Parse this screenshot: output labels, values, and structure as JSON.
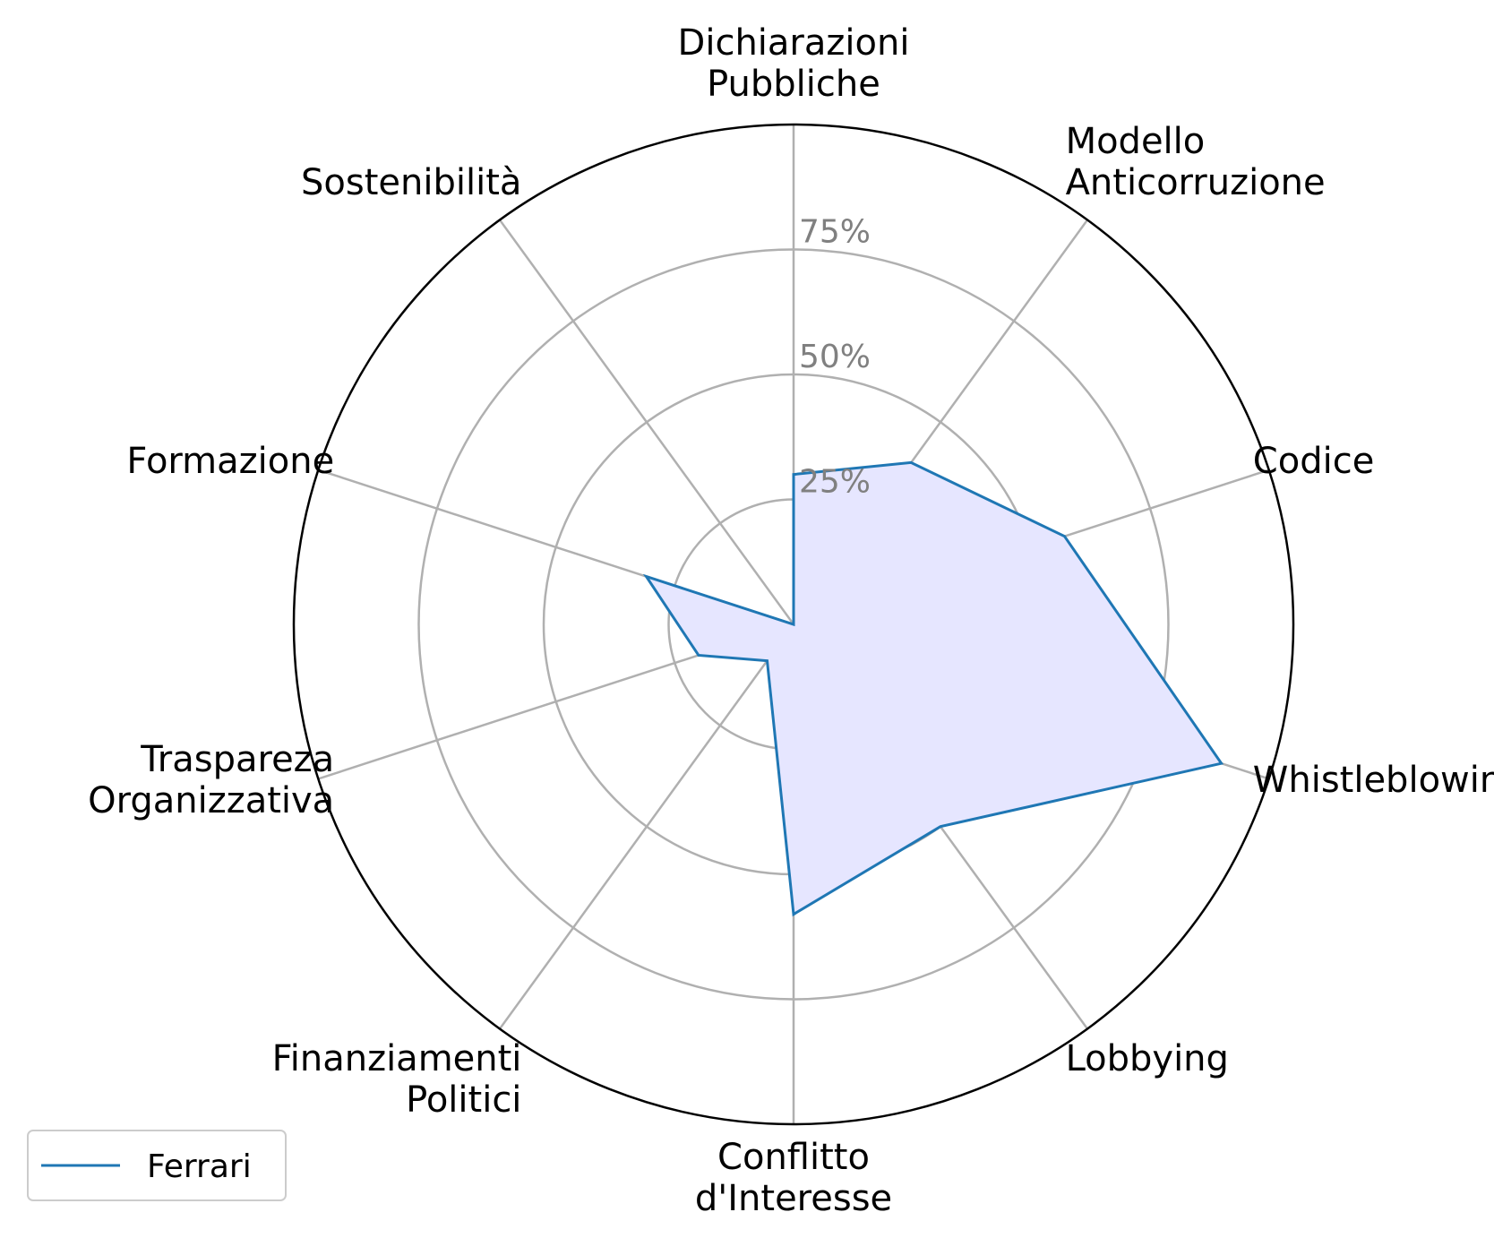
{
  "chart_data": {
    "type": "radar",
    "categories": [
      "Dichiarazioni\nPubbliche",
      "Modello\nAnticorruzione",
      "Codice",
      "Whistleblowing",
      "Lobbying",
      "Conflitto\nd'Interesse",
      "Finanziamenti\nPolitici",
      "Traspareza\nOrganizzativa",
      "Formazione",
      "Sostenibilità"
    ],
    "series": [
      {
        "name": "Ferrari",
        "values": [
          30,
          40,
          57,
          90,
          50,
          58,
          9,
          20,
          31,
          0
        ],
        "line_color": "#1f77b4",
        "fill_color": "#e6e6ff"
      }
    ],
    "rlim": [
      0,
      100
    ],
    "rticks": [
      25,
      50,
      75
    ],
    "rtick_labels": [
      "25%",
      "50%",
      "75%"
    ],
    "grid": true,
    "legend_position": "lower-left"
  }
}
